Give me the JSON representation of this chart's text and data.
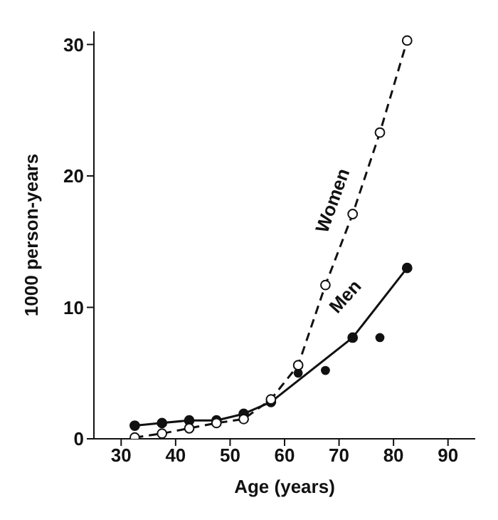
{
  "chart_data": {
    "type": "line",
    "xlabel": "Age (years)",
    "ylabel": "1000 person-years",
    "xlim": [
      25,
      95
    ],
    "xticks": [
      30,
      40,
      50,
      60,
      70,
      80,
      90
    ],
    "ylim": [
      0,
      31
    ],
    "yticks": [
      0,
      10,
      20,
      30
    ],
    "grid": false,
    "legend": false,
    "marker": "circle",
    "series": [
      {
        "name": "Women",
        "color": "#111111",
        "line_style": "dashed",
        "x": [
          32.5,
          37.5,
          42.5,
          47.5,
          52.5,
          57.5,
          62.5,
          67.5,
          72.5,
          77.5,
          82.5
        ],
        "values": [
          0.1,
          0.4,
          0.8,
          1.2,
          1.5,
          3.0,
          5.6,
          11.7,
          17.1,
          23.3,
          30.3
        ]
      },
      {
        "name": "Men",
        "color": "#111111",
        "line_style": "solid",
        "x": [
          32.5,
          37.5,
          42.5,
          47.5,
          52.5,
          57.5,
          72.5,
          82.5
        ],
        "values": [
          1.0,
          1.2,
          1.4,
          1.4,
          1.9,
          2.8,
          7.7,
          13.0
        ]
      },
      {
        "type": "scatter",
        "color": "#111111",
        "x": [
          62.5,
          67.5,
          77.5
        ],
        "values": [
          5.0,
          5.2,
          7.7
        ]
      }
    ]
  }
}
